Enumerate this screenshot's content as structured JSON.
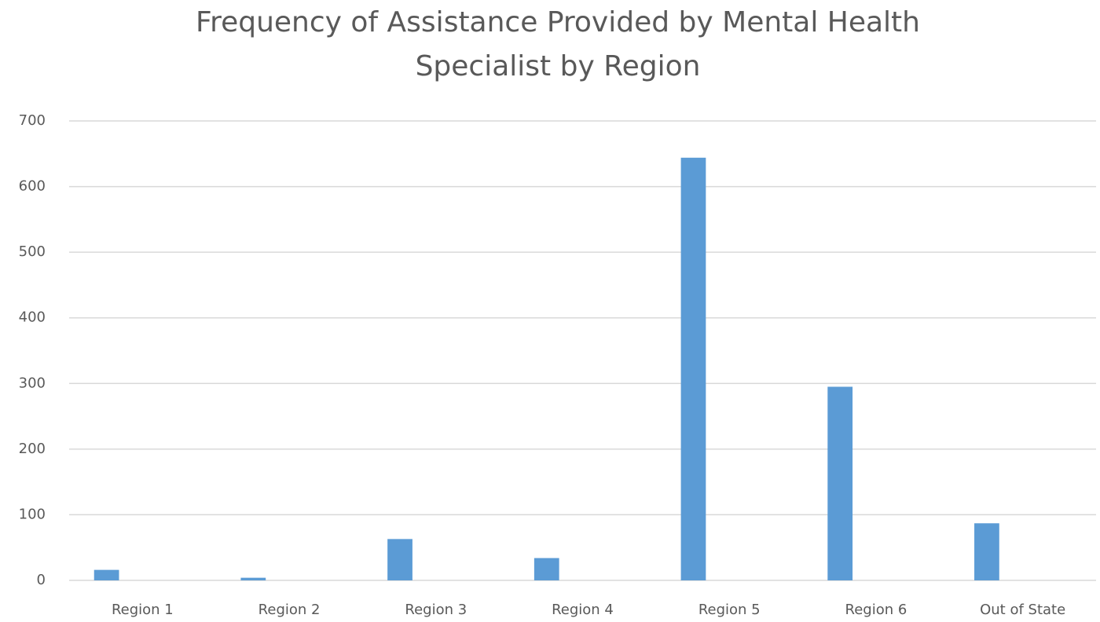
{
  "chart_data": {
    "type": "bar",
    "title": [
      "Frequency of Assistance Provided by Mental Health",
      "Specialist by Region"
    ],
    "categories": [
      "Region 1",
      "Region 2",
      "Region 3",
      "Region 4",
      "Region 5",
      "Region 6",
      "Out of State"
    ],
    "values": [
      16,
      4,
      63,
      34,
      644,
      295,
      87
    ],
    "color": "#5b9bd5",
    "ylim": [
      0,
      700
    ],
    "yticks": [
      0,
      100,
      200,
      300,
      400,
      500,
      600,
      700
    ],
    "grid": true
  }
}
